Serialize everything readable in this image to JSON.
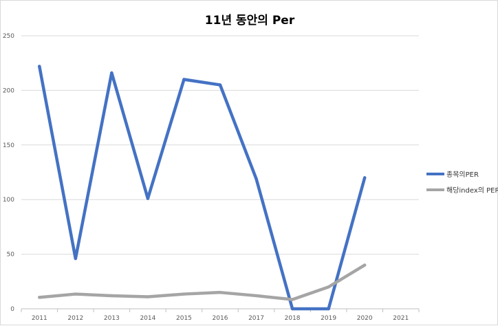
{
  "chart_data": {
    "type": "line",
    "title": "11년 동안의 Per",
    "xlabel": "",
    "ylabel": "",
    "categories": [
      "2011",
      "2012",
      "2013",
      "2014",
      "2015",
      "2016",
      "2017",
      "2018",
      "2019",
      "2020",
      "2021"
    ],
    "yticks": [
      "0",
      "50",
      "100",
      "150",
      "200",
      "250"
    ],
    "ylim": [
      0,
      250
    ],
    "grid": true,
    "legend_position": "right",
    "series": [
      {
        "name": "종목의PER",
        "color": "#4472C4",
        "values": [
          222,
          46,
          216,
          101,
          210,
          205,
          119,
          0,
          0,
          120,
          null
        ]
      },
      {
        "name": "해당index의 PER",
        "color": "#A5A5A5",
        "values": [
          10.5,
          13.5,
          12,
          11,
          13.5,
          15,
          12,
          8.5,
          20,
          40,
          null
        ]
      }
    ]
  }
}
